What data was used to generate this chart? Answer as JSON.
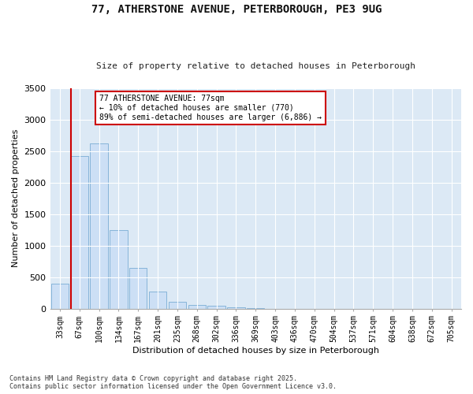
{
  "title_line1": "77, ATHERSTONE AVENUE, PETERBOROUGH, PE3 9UG",
  "title_line2": "Size of property relative to detached houses in Peterborough",
  "xlabel": "Distribution of detached houses by size in Peterborough",
  "ylabel": "Number of detached properties",
  "bar_categories": [
    "33sqm",
    "67sqm",
    "100sqm",
    "134sqm",
    "167sqm",
    "201sqm",
    "235sqm",
    "268sqm",
    "302sqm",
    "336sqm",
    "369sqm",
    "403sqm",
    "436sqm",
    "470sqm",
    "504sqm",
    "537sqm",
    "571sqm",
    "604sqm",
    "638sqm",
    "672sqm",
    "705sqm"
  ],
  "bar_values": [
    390,
    2420,
    2620,
    1250,
    640,
    270,
    105,
    55,
    45,
    20,
    5,
    0,
    0,
    0,
    0,
    0,
    0,
    0,
    0,
    0,
    0
  ],
  "bar_color": "#ccdff5",
  "bar_edgecolor": "#7aadd4",
  "vline_x": 0.575,
  "vline_color": "#cc0000",
  "annotation_title": "77 ATHERSTONE AVENUE: 77sqm",
  "annotation_line1": "← 10% of detached houses are smaller (770)",
  "annotation_line2": "89% of semi-detached houses are larger (6,886) →",
  "annotation_box_color": "#cc0000",
  "ylim": [
    0,
    3500
  ],
  "yticks": [
    0,
    500,
    1000,
    1500,
    2000,
    2500,
    3000,
    3500
  ],
  "fig_bg_color": "#ffffff",
  "plot_bg_color": "#dce9f5",
  "footer_line1": "Contains HM Land Registry data © Crown copyright and database right 2025.",
  "footer_line2": "Contains public sector information licensed under the Open Government Licence v3.0."
}
